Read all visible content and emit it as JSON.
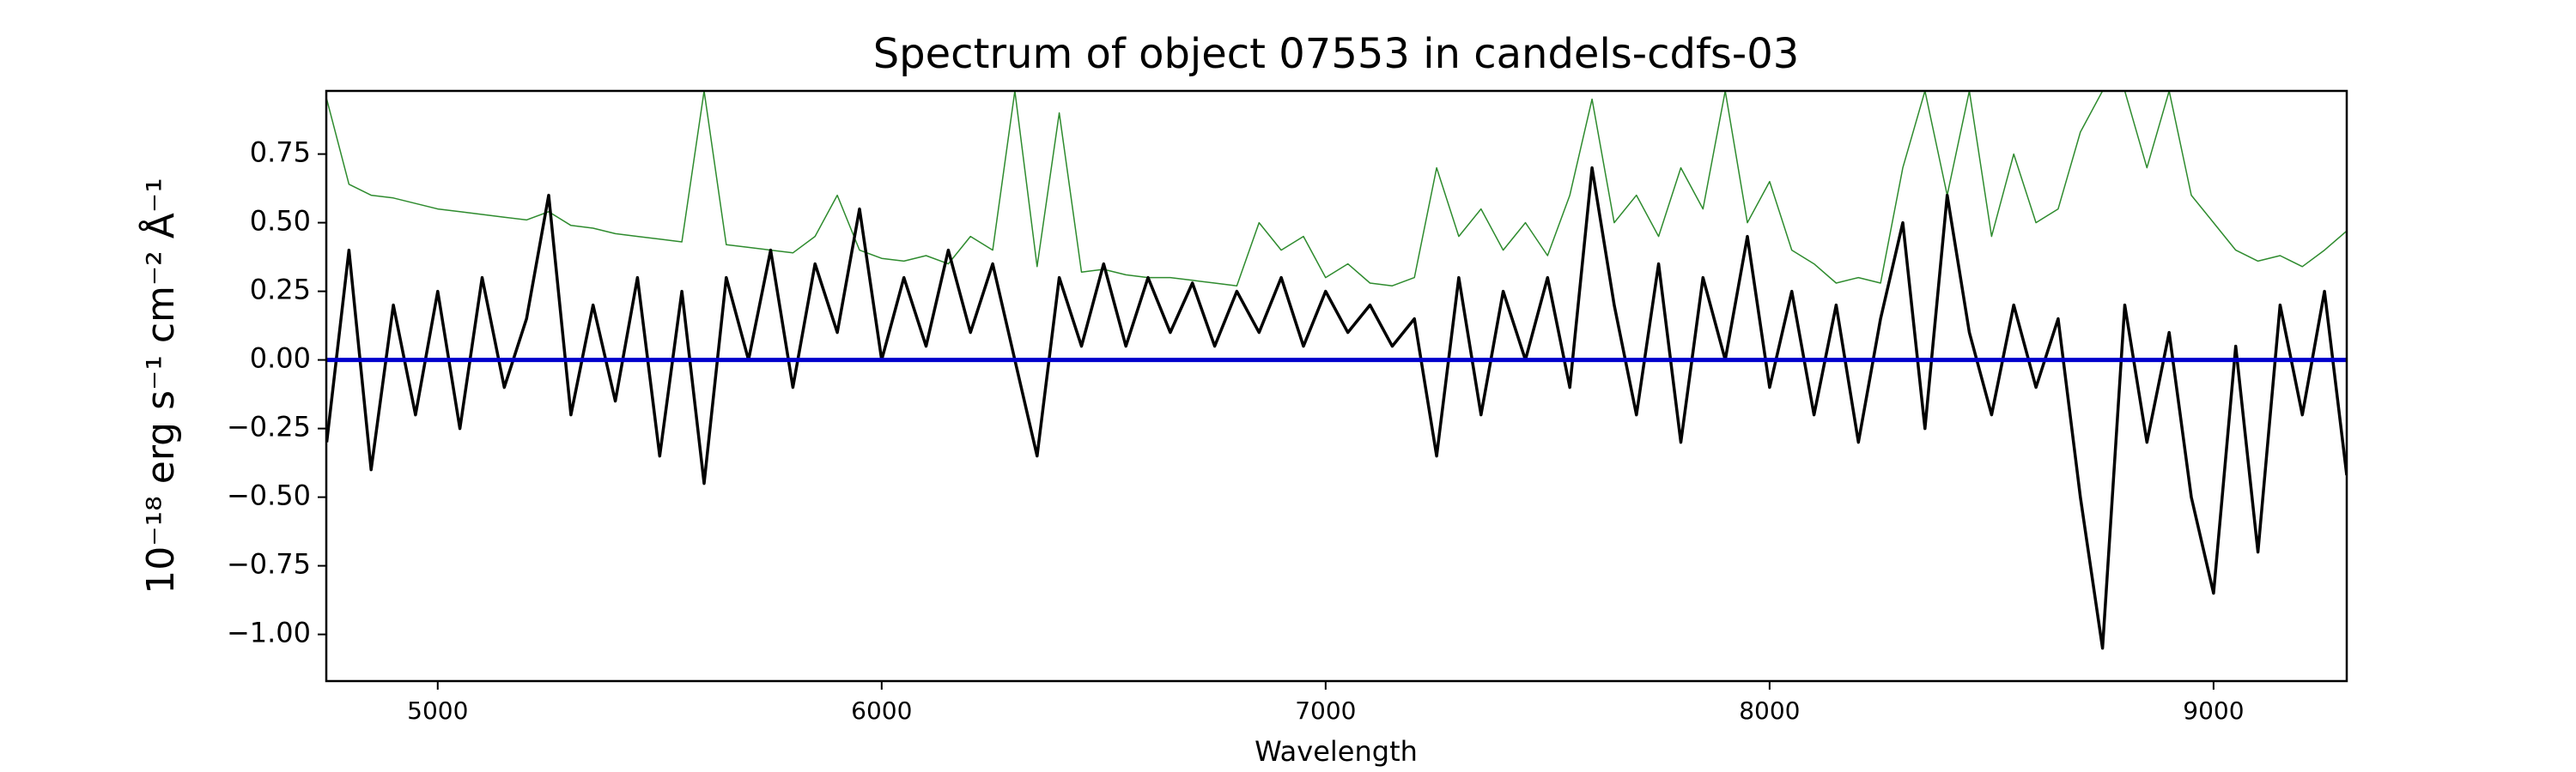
{
  "chart_data": {
    "type": "line",
    "title": "Spectrum of object 07553 in candels-cdfs-03",
    "xlabel": "Wavelength",
    "ylabel": "10⁻¹⁸ erg s⁻¹ cm⁻² Å⁻¹",
    "x": [
      4750,
      4800,
      4850,
      4900,
      4950,
      5000,
      5050,
      5100,
      5150,
      5200,
      5250,
      5300,
      5350,
      5400,
      5450,
      5500,
      5550,
      5600,
      5650,
      5700,
      5750,
      5800,
      5850,
      5900,
      5950,
      6000,
      6050,
      6100,
      6150,
      6200,
      6250,
      6300,
      6350,
      6400,
      6450,
      6500,
      6550,
      6600,
      6650,
      6700,
      6750,
      6800,
      6850,
      6900,
      6950,
      7000,
      7050,
      7100,
      7150,
      7200,
      7250,
      7300,
      7350,
      7400,
      7450,
      7500,
      7550,
      7600,
      7650,
      7700,
      7750,
      7800,
      7850,
      7900,
      7950,
      8000,
      8050,
      8100,
      8150,
      8200,
      8250,
      8300,
      8350,
      8400,
      8450,
      8500,
      8550,
      8600,
      8650,
      8700,
      8750,
      8800,
      8850,
      8900,
      8950,
      9000,
      9050,
      9100,
      9150,
      9200,
      9250,
      9300
    ],
    "series": [
      {
        "color": "#2e8b2e",
        "values": [
          0.95,
          0.64,
          0.6,
          0.59,
          0.57,
          0.55,
          0.54,
          0.53,
          0.52,
          0.51,
          0.54,
          0.49,
          0.48,
          0.46,
          0.45,
          0.44,
          0.43,
          0.98,
          0.42,
          0.41,
          0.4,
          0.39,
          0.45,
          0.6,
          0.4,
          0.37,
          0.36,
          0.38,
          0.35,
          0.45,
          0.4,
          0.98,
          0.34,
          0.9,
          0.32,
          0.33,
          0.31,
          0.3,
          0.3,
          0.29,
          0.28,
          0.27,
          0.5,
          0.4,
          0.45,
          0.3,
          0.35,
          0.28,
          0.27,
          0.3,
          0.7,
          0.45,
          0.55,
          0.4,
          0.5,
          0.38,
          0.6,
          0.95,
          0.5,
          0.6,
          0.45,
          0.7,
          0.55,
          0.98,
          0.5,
          0.65,
          0.4,
          0.35,
          0.28,
          0.3,
          0.28,
          0.7,
          0.98,
          0.6,
          0.98,
          0.45,
          0.75,
          0.5,
          0.55,
          0.83,
          0.98,
          0.98,
          0.7,
          0.98,
          0.6,
          0.5,
          0.4,
          0.36,
          0.38,
          0.34,
          0.4,
          0.47
        ]
      },
      {
        "color": "#000000",
        "values": [
          -0.3,
          0.4,
          -0.4,
          0.2,
          -0.2,
          0.25,
          -0.25,
          0.3,
          -0.1,
          0.15,
          0.6,
          -0.2,
          0.2,
          -0.15,
          0.3,
          -0.35,
          0.25,
          -0.45,
          0.3,
          0.0,
          0.4,
          -0.1,
          0.35,
          0.1,
          0.55,
          0.0,
          0.3,
          0.05,
          0.4,
          0.1,
          0.35,
          0.0,
          -0.35,
          0.3,
          0.05,
          0.35,
          0.05,
          0.3,
          0.1,
          0.28,
          0.05,
          0.25,
          0.1,
          0.3,
          0.05,
          0.25,
          0.1,
          0.2,
          0.05,
          0.15,
          -0.35,
          0.3,
          -0.2,
          0.25,
          0.0,
          0.3,
          -0.1,
          0.7,
          0.2,
          -0.2,
          0.35,
          -0.3,
          0.3,
          0.0,
          0.45,
          -0.1,
          0.25,
          -0.2,
          0.2,
          -0.3,
          0.15,
          0.5,
          -0.25,
          0.6,
          0.1,
          -0.2,
          0.2,
          -0.1,
          0.15,
          -0.5,
          -1.05,
          0.2,
          -0.3,
          0.1,
          -0.5,
          -0.85,
          0.05,
          -0.7,
          0.2,
          -0.2,
          0.25,
          -0.42
        ]
      },
      {
        "color": "#0000cc",
        "values": [
          0,
          0,
          0,
          0,
          0,
          0,
          0,
          0,
          0,
          0,
          0,
          0,
          0,
          0,
          0,
          0,
          0,
          0,
          0,
          0,
          0,
          0,
          0,
          0,
          0,
          0,
          0,
          0,
          0,
          0,
          0,
          0,
          0,
          0,
          0,
          0,
          0,
          0,
          0,
          0,
          0,
          0,
          0,
          0,
          0,
          0,
          0,
          0,
          0,
          0,
          0,
          0,
          0,
          0,
          0,
          0,
          0,
          0,
          0,
          0,
          0,
          0,
          0,
          0,
          0,
          0,
          0,
          0,
          0,
          0,
          0,
          0,
          0,
          0,
          0,
          0,
          0,
          0,
          0,
          0,
          0,
          0,
          0,
          0,
          0,
          0,
          0,
          0,
          0,
          0,
          0,
          0
        ]
      }
    ],
    "xlim": [
      4749,
      9300
    ],
    "ylim": [
      -1.17,
      0.98
    ],
    "xticks": [
      5000,
      6000,
      7000,
      8000,
      9000
    ],
    "yticks": [
      {
        "value": -1,
        "label": "−1.00"
      },
      {
        "value": -0.75,
        "label": "−0.75"
      },
      {
        "value": -0.5,
        "label": "−0.50"
      },
      {
        "value": -0.25,
        "label": "−0.25"
      },
      {
        "value": 0,
        "label": "0.00"
      },
      {
        "value": 0.25,
        "label": "0.25"
      },
      {
        "value": 0.5,
        "label": "0.50"
      },
      {
        "value": 0.75,
        "label": "0.75"
      }
    ],
    "grid": false
  }
}
